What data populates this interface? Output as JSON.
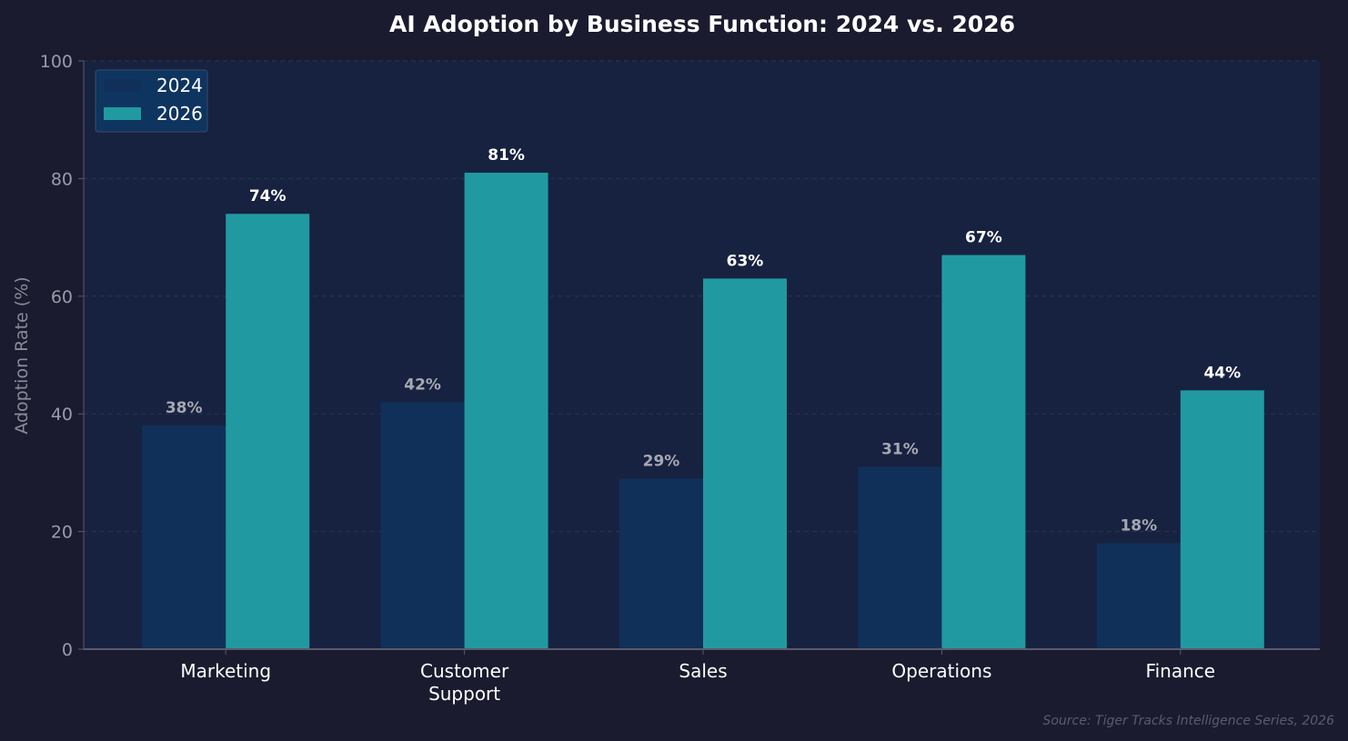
{
  "chart_data": {
    "type": "bar",
    "title": "AI Adoption by Business Function: 2024 vs. 2026",
    "xlabel": "",
    "ylabel": "Adoption Rate (%)",
    "ylim": [
      0,
      100
    ],
    "yticks": [
      0,
      20,
      40,
      60,
      80,
      100
    ],
    "grid": true,
    "legend_position": "top-left",
    "categories": [
      [
        "Marketing"
      ],
      [
        "Customer",
        "Support"
      ],
      [
        "Sales"
      ],
      [
        "Operations"
      ],
      [
        "Finance"
      ]
    ],
    "series": [
      {
        "name": "2024",
        "color": "#10305a",
        "values": [
          38,
          42,
          29,
          31,
          18
        ],
        "labels": [
          "38%",
          "42%",
          "29%",
          "31%",
          "18%"
        ]
      },
      {
        "name": "2026",
        "color": "#209aa0",
        "values": [
          74,
          81,
          63,
          67,
          44
        ],
        "labels": [
          "74%",
          "81%",
          "63%",
          "67%",
          "44%"
        ]
      }
    ]
  },
  "source_note": "Source: Tiger Tracks Intelligence Series, 2026",
  "colors": {
    "background": "#1b1b2f",
    "plot_background": "#172240",
    "grid": "#2a3450",
    "axis": "#5a5a6e"
  }
}
